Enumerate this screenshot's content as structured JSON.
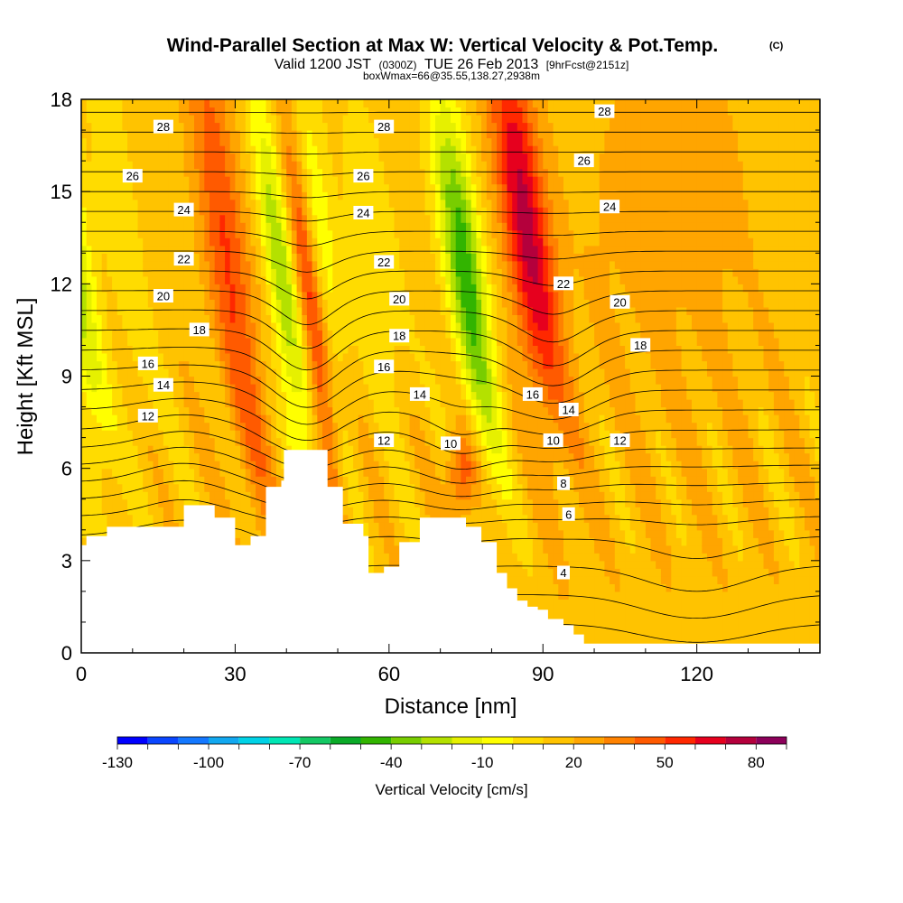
{
  "chart_data": {
    "type": "heatmap",
    "title": "Wind-Parallel Section at Max W: Vertical Velocity & Pot.Temp.",
    "title_suffix": "(C)",
    "subtitle_prefix": "Valid 1200 JST",
    "subtitle_tz": "(0300Z)",
    "subtitle_date": "TUE 26 Feb 2013",
    "subtitle_fcst": "[9hrFcst@2151z]",
    "box_note": "boxWmax=66@35.55,138.27,2938m",
    "xlabel": "Distance [nm]",
    "ylabel": "Height [Kft MSL]",
    "xlim": [
      0,
      144
    ],
    "ylim": [
      0,
      18
    ],
    "xticks": [
      0,
      30,
      60,
      90,
      120
    ],
    "yticks": [
      0,
      3,
      6,
      9,
      12,
      15,
      18
    ],
    "colorbar": {
      "label": "Vertical Velocity [cm/s]",
      "ticks": [
        -130,
        -100,
        -70,
        -40,
        -10,
        20,
        50,
        80
      ],
      "levels": [
        -130,
        -120,
        -110,
        -100,
        -90,
        -80,
        -70,
        -60,
        -50,
        -40,
        -30,
        -20,
        -10,
        0,
        10,
        20,
        30,
        40,
        50,
        60,
        70,
        80,
        90
      ],
      "colors": [
        "#0000ff",
        "#0a46ff",
        "#1478ff",
        "#12a8f0",
        "#00d2e6",
        "#00e6b4",
        "#14c864",
        "#0aaa28",
        "#32b400",
        "#78cd00",
        "#b4e100",
        "#e6f000",
        "#ffff00",
        "#ffdc00",
        "#ffc300",
        "#ffa500",
        "#ff8200",
        "#ff5a00",
        "#ff2800",
        "#e6001e",
        "#b4003c",
        "#8c005a",
        "#640078"
      ]
    },
    "w_features": [
      {
        "x": 4,
        "w": -30
      },
      {
        "x": 13,
        "w": -15
      },
      {
        "x": 35,
        "w": 40
      },
      {
        "x": 44,
        "w": -40
      },
      {
        "x": 49,
        "w": 45
      },
      {
        "x": 52,
        "w": -15
      },
      {
        "x": 63,
        "w": -15
      },
      {
        "x": 80,
        "w": -55
      },
      {
        "x": 93,
        "w": 60
      },
      {
        "x": 74,
        "w": 40
      },
      {
        "x": 115,
        "w": 20
      }
    ],
    "theta_contours": {
      "interval": 1,
      "labeled": [
        4,
        6,
        8,
        10,
        12,
        14,
        16,
        18,
        20,
        22,
        24,
        26,
        28
      ],
      "labels": [
        {
          "value": "28",
          "x": 16,
          "y": 17.1
        },
        {
          "value": "28",
          "x": 59,
          "y": 17.1
        },
        {
          "value": "28",
          "x": 102,
          "y": 17.6
        },
        {
          "value": "26",
          "x": 10,
          "y": 15.5
        },
        {
          "value": "26",
          "x": 55,
          "y": 15.5
        },
        {
          "value": "26",
          "x": 98,
          "y": 16.0
        },
        {
          "value": "24",
          "x": 20,
          "y": 14.4
        },
        {
          "value": "24",
          "x": 55,
          "y": 14.3
        },
        {
          "value": "24",
          "x": 103,
          "y": 14.5
        },
        {
          "value": "22",
          "x": 20,
          "y": 12.8
        },
        {
          "value": "22",
          "x": 59,
          "y": 12.7
        },
        {
          "value": "22",
          "x": 94,
          "y": 12.0
        },
        {
          "value": "20",
          "x": 16,
          "y": 11.6
        },
        {
          "value": "20",
          "x": 62,
          "y": 11.5
        },
        {
          "value": "20",
          "x": 105,
          "y": 11.4
        },
        {
          "value": "18",
          "x": 23,
          "y": 10.5
        },
        {
          "value": "18",
          "x": 62,
          "y": 10.3
        },
        {
          "value": "18",
          "x": 109,
          "y": 10.0
        },
        {
          "value": "16",
          "x": 13,
          "y": 9.4
        },
        {
          "value": "16",
          "x": 59,
          "y": 9.3
        },
        {
          "value": "16",
          "x": 88,
          "y": 8.4
        },
        {
          "value": "14",
          "x": 16,
          "y": 8.7
        },
        {
          "value": "14",
          "x": 66,
          "y": 8.4
        },
        {
          "value": "14",
          "x": 95,
          "y": 7.9
        },
        {
          "value": "12",
          "x": 13,
          "y": 7.7
        },
        {
          "value": "12",
          "x": 59,
          "y": 6.9
        },
        {
          "value": "12",
          "x": 105,
          "y": 6.9
        },
        {
          "value": "10",
          "x": 72,
          "y": 6.8
        },
        {
          "value": "10",
          "x": 92,
          "y": 6.9
        },
        {
          "value": "8",
          "x": 94,
          "y": 5.5
        },
        {
          "value": "6",
          "x": 95,
          "y": 4.5
        },
        {
          "value": "4",
          "x": 94,
          "y": 2.6
        }
      ]
    }
  }
}
